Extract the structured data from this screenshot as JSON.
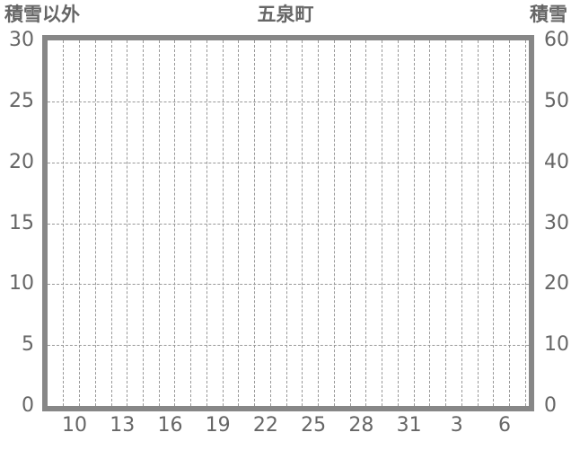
{
  "header": {
    "left_axis_title": "積雪以外",
    "chart_title": "五泉町",
    "right_axis_title": "積雪"
  },
  "chart_data": {
    "type": "line",
    "title": "五泉町",
    "series": [],
    "note": "empty plot area — no data series rendered, grid only",
    "x_axis": {
      "tick_labels": [
        "10",
        "13",
        "16",
        "19",
        "22",
        "25",
        "28",
        "31",
        "3",
        "6"
      ],
      "gridline_count": 30,
      "labeled_gridline_start_index": 1,
      "labeled_gridline_step": 3,
      "grid_style": "dashed"
    },
    "y_axis_left": {
      "label": "積雪以外",
      "min": 0,
      "max": 30,
      "step": 5,
      "tick_labels_top_to_bottom": [
        "30",
        "25",
        "20",
        "15",
        "10",
        "5",
        "0"
      ]
    },
    "y_axis_right": {
      "label": "積雪",
      "min": 0,
      "max": 60,
      "step": 10,
      "tick_labels_top_to_bottom": [
        "60",
        "50",
        "40",
        "30",
        "20",
        "10",
        "0"
      ]
    },
    "legend": "none",
    "grid": {
      "horizontal": "dashed",
      "vertical": "dashed"
    }
  },
  "colors": {
    "text": "#666666",
    "frame": "#878787",
    "gridline": "#999999",
    "background": "#ffffff"
  }
}
